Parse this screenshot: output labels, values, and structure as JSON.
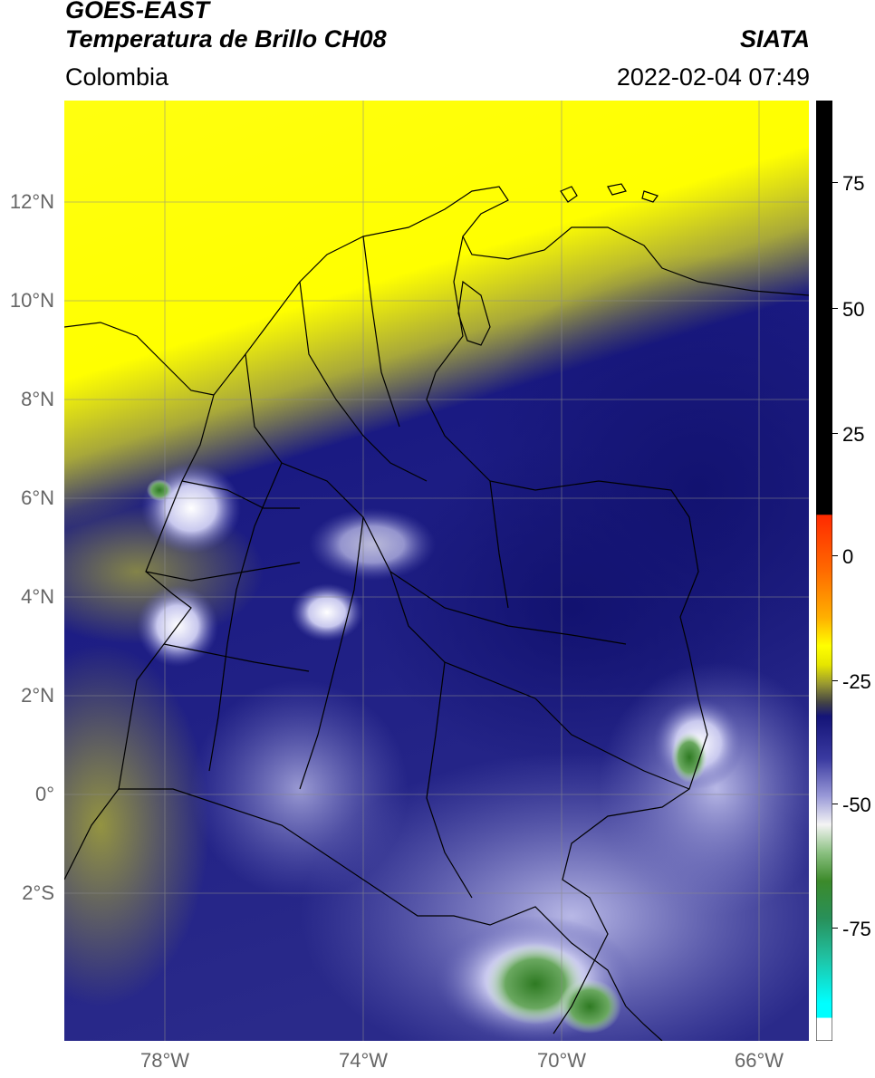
{
  "header": {
    "title_line1": "GOES-EAST",
    "title_line2": "Temperatura de Brillo CH08",
    "brand": "SIATA",
    "region": "Colombia",
    "timestamp": "2022-02-04 07:49"
  },
  "map": {
    "lat_labels": [
      "12°N",
      "10°N",
      "8°N",
      "6°N",
      "4°N",
      "2°N",
      "0°",
      "2°S"
    ],
    "lon_labels": [
      "78°W",
      "74°W",
      "70°W",
      "66°W"
    ]
  },
  "colorbar": {
    "tick_labels": [
      "75",
      "50",
      "25",
      "0",
      "-25",
      "-50",
      "-75"
    ],
    "colors": {
      "black": "#000000",
      "red": "#ff2a00",
      "orange": "#ff9a00",
      "yellow": "#ffff00",
      "olive": "#6b6b24",
      "navy": "#141478",
      "lavender": "#9a9ad8",
      "white": "#f4f4f4",
      "green": "#3c8a2a",
      "teal": "#20c0a0",
      "cyan": "#00ffff"
    }
  }
}
